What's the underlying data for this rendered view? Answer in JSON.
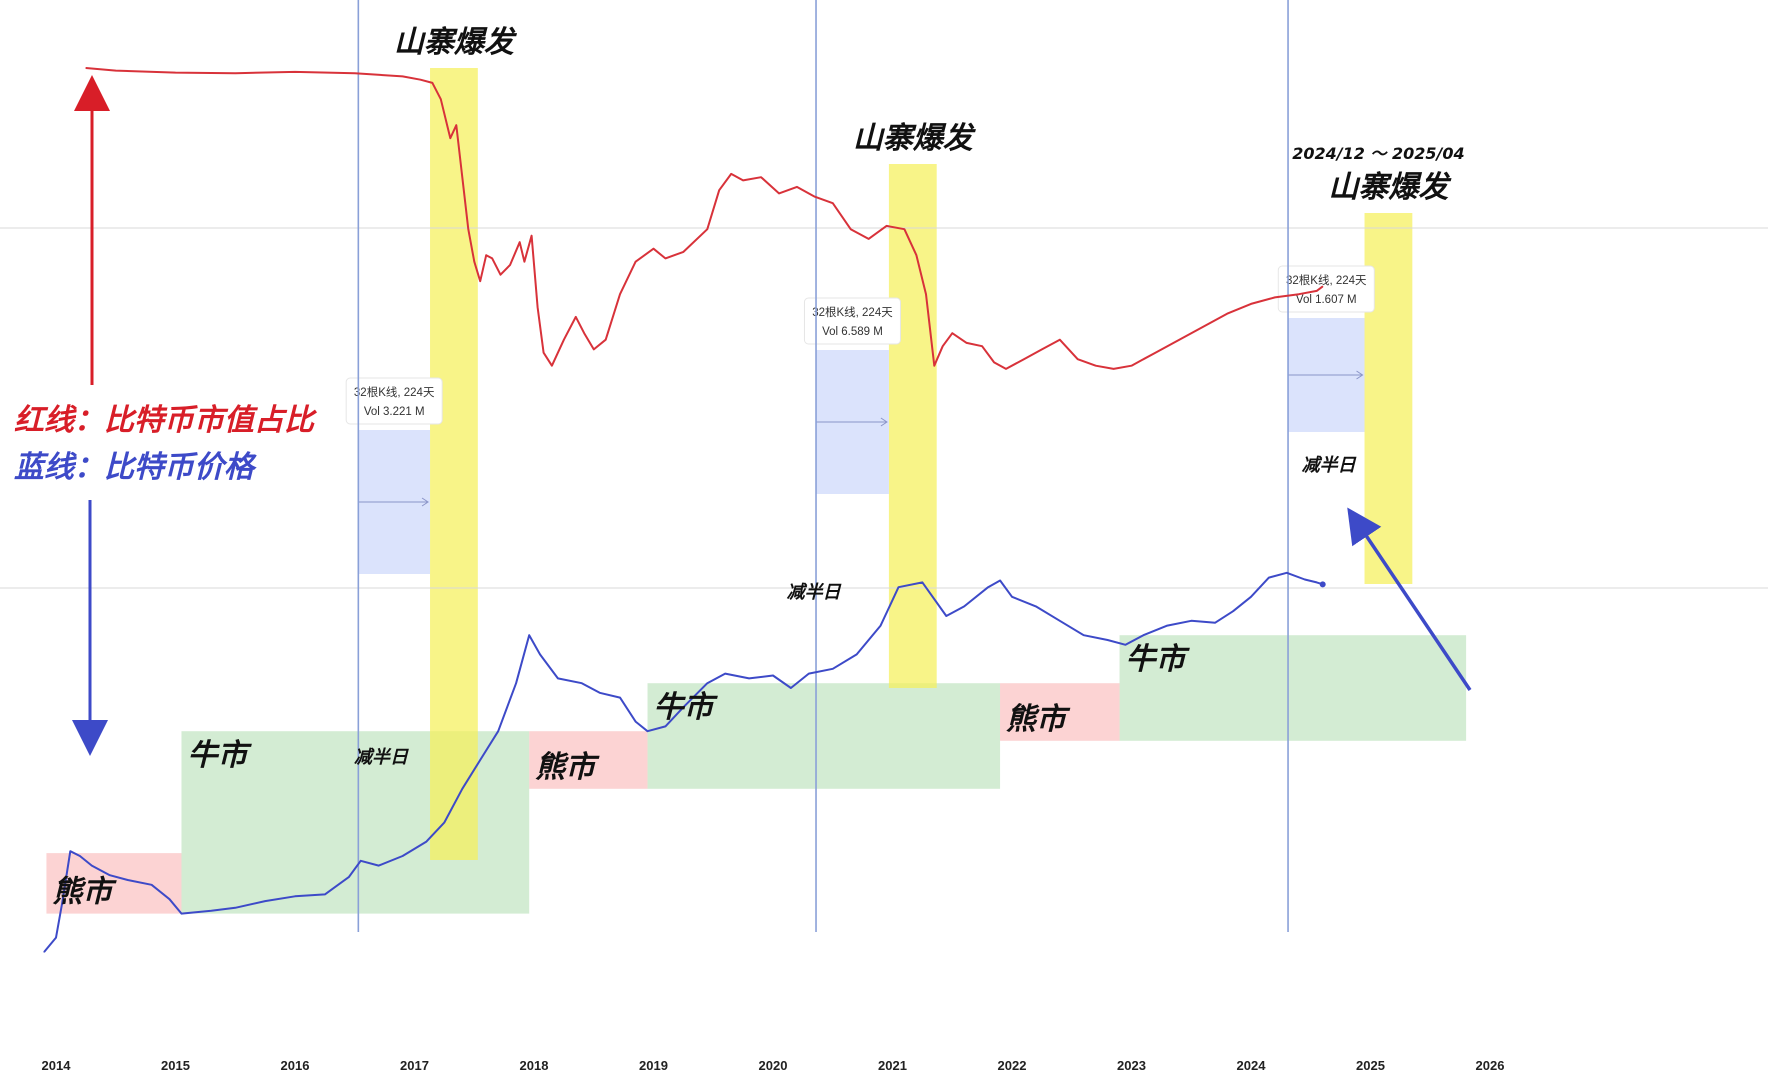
{
  "chart_data": {
    "type": "line",
    "x_unit": "year",
    "xlim": [
      2013.9,
      2026.3
    ],
    "x_ticks": [
      "2014",
      "2015",
      "2016",
      "2017",
      "2018",
      "2019",
      "2020",
      "2021",
      "2022",
      "2023",
      "2024",
      "2025",
      "2026"
    ],
    "grid": false,
    "series": [
      {
        "name": "红线：比特币市值占比",
        "color": "#d8323a",
        "points": [
          [
            2014.25,
            96.8
          ],
          [
            2014.5,
            96.4
          ],
          [
            2015.0,
            96.1
          ],
          [
            2015.5,
            96.0
          ],
          [
            2016.0,
            96.2
          ],
          [
            2016.5,
            96.0
          ],
          [
            2016.9,
            95.5
          ],
          [
            2017.05,
            95.0
          ],
          [
            2017.15,
            94.5
          ],
          [
            2017.22,
            92.0
          ],
          [
            2017.3,
            86.0
          ],
          [
            2017.35,
            88.0
          ],
          [
            2017.4,
            80.0
          ],
          [
            2017.45,
            72.0
          ],
          [
            2017.5,
            67.0
          ],
          [
            2017.55,
            64.0
          ],
          [
            2017.6,
            68.0
          ],
          [
            2017.65,
            67.5
          ],
          [
            2017.72,
            65.0
          ],
          [
            2017.8,
            66.5
          ],
          [
            2017.88,
            70.0
          ],
          [
            2017.92,
            67.0
          ],
          [
            2017.98,
            71.0
          ],
          [
            2018.03,
            60.0
          ],
          [
            2018.08,
            53.0
          ],
          [
            2018.15,
            51.0
          ],
          [
            2018.25,
            55.0
          ],
          [
            2018.35,
            58.5
          ],
          [
            2018.42,
            56.0
          ],
          [
            2018.5,
            53.5
          ],
          [
            2018.6,
            55.0
          ],
          [
            2018.72,
            62.0
          ],
          [
            2018.85,
            67.0
          ],
          [
            2019.0,
            69.0
          ],
          [
            2019.1,
            67.5
          ],
          [
            2019.25,
            68.5
          ],
          [
            2019.45,
            72.0
          ],
          [
            2019.55,
            78.0
          ],
          [
            2019.65,
            80.5
          ],
          [
            2019.75,
            79.5
          ],
          [
            2019.9,
            80.0
          ],
          [
            2020.05,
            77.5
          ],
          [
            2020.2,
            78.5
          ],
          [
            2020.35,
            77.0
          ],
          [
            2020.5,
            76.0
          ],
          [
            2020.65,
            72.0
          ],
          [
            2020.8,
            70.5
          ],
          [
            2020.95,
            72.5
          ],
          [
            2021.1,
            72.0
          ],
          [
            2021.2,
            68.0
          ],
          [
            2021.28,
            62.0
          ],
          [
            2021.35,
            51.0
          ],
          [
            2021.42,
            54.0
          ],
          [
            2021.5,
            56.0
          ],
          [
            2021.62,
            54.5
          ],
          [
            2021.75,
            54.0
          ],
          [
            2021.85,
            51.5
          ],
          [
            2021.95,
            50.5
          ],
          [
            2022.1,
            52.0
          ],
          [
            2022.25,
            53.5
          ],
          [
            2022.4,
            55.0
          ],
          [
            2022.55,
            52.0
          ],
          [
            2022.7,
            51.0
          ],
          [
            2022.85,
            50.5
          ],
          [
            2023.0,
            51.0
          ],
          [
            2023.2,
            53.0
          ],
          [
            2023.4,
            55.0
          ],
          [
            2023.6,
            57.0
          ],
          [
            2023.8,
            59.0
          ],
          [
            2024.0,
            60.5
          ],
          [
            2024.2,
            61.5
          ],
          [
            2024.4,
            62.0
          ],
          [
            2024.55,
            62.5
          ],
          [
            2024.6,
            63.2
          ]
        ]
      },
      {
        "name": "蓝线：比特币价格",
        "color": "#3d4ac8",
        "points": [
          [
            2013.9,
            5.0
          ],
          [
            2014.0,
            6.5
          ],
          [
            2014.05,
            10.0
          ],
          [
            2014.12,
            15.5
          ],
          [
            2014.2,
            15.0
          ],
          [
            2014.3,
            14.0
          ],
          [
            2014.45,
            13.0
          ],
          [
            2014.6,
            12.5
          ],
          [
            2014.8,
            12.0
          ],
          [
            2014.95,
            10.5
          ],
          [
            2015.05,
            9.0
          ],
          [
            2015.3,
            9.3
          ],
          [
            2015.5,
            9.6
          ],
          [
            2015.75,
            10.3
          ],
          [
            2016.0,
            10.8
          ],
          [
            2016.25,
            11.0
          ],
          [
            2016.45,
            12.8
          ],
          [
            2016.55,
            14.5
          ],
          [
            2016.7,
            14.0
          ],
          [
            2016.9,
            15.0
          ],
          [
            2017.1,
            16.5
          ],
          [
            2017.25,
            18.5
          ],
          [
            2017.4,
            22.0
          ],
          [
            2017.55,
            25.0
          ],
          [
            2017.7,
            28.0
          ],
          [
            2017.85,
            33.0
          ],
          [
            2017.96,
            38.0
          ],
          [
            2018.05,
            36.0
          ],
          [
            2018.2,
            33.5
          ],
          [
            2018.4,
            33.0
          ],
          [
            2018.55,
            32.0
          ],
          [
            2018.72,
            31.5
          ],
          [
            2018.85,
            29.0
          ],
          [
            2018.95,
            28.0
          ],
          [
            2019.1,
            28.5
          ],
          [
            2019.25,
            30.5
          ],
          [
            2019.45,
            33.0
          ],
          [
            2019.6,
            34.0
          ],
          [
            2019.8,
            33.5
          ],
          [
            2020.0,
            33.8
          ],
          [
            2020.15,
            32.5
          ],
          [
            2020.3,
            34.0
          ],
          [
            2020.5,
            34.5
          ],
          [
            2020.7,
            36.0
          ],
          [
            2020.9,
            39.0
          ],
          [
            2021.05,
            43.0
          ],
          [
            2021.25,
            43.5
          ],
          [
            2021.45,
            40.0
          ],
          [
            2021.6,
            41.0
          ],
          [
            2021.8,
            43.0
          ],
          [
            2021.9,
            43.7
          ],
          [
            2022.0,
            42.0
          ],
          [
            2022.2,
            41.0
          ],
          [
            2022.4,
            39.5
          ],
          [
            2022.6,
            38.0
          ],
          [
            2022.8,
            37.5
          ],
          [
            2022.95,
            37.0
          ],
          [
            2023.1,
            38.0
          ],
          [
            2023.3,
            39.0
          ],
          [
            2023.5,
            39.5
          ],
          [
            2023.7,
            39.3
          ],
          [
            2023.85,
            40.5
          ],
          [
            2024.0,
            42.0
          ],
          [
            2024.15,
            44.0
          ],
          [
            2024.3,
            44.5
          ],
          [
            2024.45,
            43.8
          ],
          [
            2024.55,
            43.5
          ],
          [
            2024.6,
            43.3
          ]
        ]
      }
    ],
    "halving_lines": [
      2016.53,
      2020.36,
      2024.31
    ],
    "market_phases": [
      {
        "label": "熊市",
        "kind": "bear",
        "x0": 2013.92,
        "x1": 2015.05,
        "y_top": 15.3,
        "y_bottom": 9.0
      },
      {
        "label": "牛市",
        "kind": "bull",
        "x0": 2015.05,
        "x1": 2017.96,
        "y_top": 28.0,
        "y_bottom": 9.0
      },
      {
        "label": "熊市",
        "kind": "bear",
        "x0": 2017.96,
        "x1": 2018.95,
        "y_top": 28.0,
        "y_bottom": 22.0
      },
      {
        "label": "牛市",
        "kind": "bull",
        "x0": 2018.95,
        "x1": 2021.9,
        "y_top": 33.0,
        "y_bottom": 22.0
      },
      {
        "label": "熊市",
        "kind": "bear",
        "x0": 2021.9,
        "x1": 2022.9,
        "y_top": 33.0,
        "y_bottom": 27.0
      },
      {
        "label": "牛市",
        "kind": "bull",
        "x0": 2022.9,
        "x1": 2025.8,
        "y_top": 38.0,
        "y_bottom": 27.0
      }
    ],
    "altseason_bands": [
      {
        "label": "山寨爆发",
        "x0": 2017.13,
        "x1": 2017.53
      },
      {
        "label": "山寨爆发",
        "x0": 2020.97,
        "x1": 2021.37
      },
      {
        "label": "山寨爆发",
        "x0": 2024.95,
        "x1": 2025.35,
        "date_range": "2024/12 ～ 2025/04"
      }
    ],
    "halving_labels": [
      "减半日",
      "减半日",
      "减半日"
    ],
    "count_boxes": [
      {
        "line1": "32根K线, 224天",
        "line2": "Vol 3.221 M"
      },
      {
        "line1": "32根K线, 224天",
        "line2": "Vol 6.589 M"
      },
      {
        "line1": "32根K线, 224天",
        "line2": "Vol 1.607 M"
      }
    ],
    "legend": {
      "red": "红线：比特币市值占比",
      "blue": "蓝线：比特币价格",
      "placement": "left"
    }
  }
}
